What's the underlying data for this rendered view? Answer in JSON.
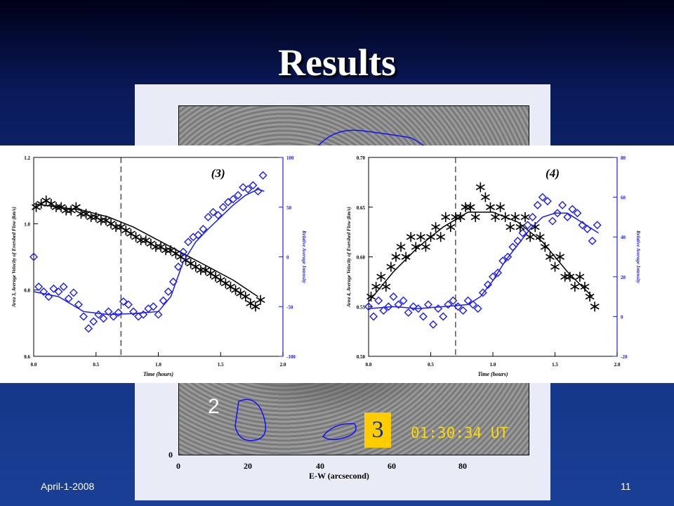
{
  "slide": {
    "title": "Results",
    "footer_date": "April-1-2008",
    "page_number": "11"
  },
  "image": {
    "region_label_2": "2",
    "region_label_3": "3",
    "timestamp": "01:30:34 UT",
    "x_ticks": [
      "0",
      "20",
      "40",
      "60",
      "80"
    ],
    "y_tick_zero": "0",
    "x_axis_label": "E-W (arcsecond)"
  },
  "chart_data": [
    {
      "type": "scatter",
      "title": "(3)",
      "xlabel": "Time (hours)",
      "ylabel_left": "Area 3, Average Velocity of Evershed Flow (km/s)",
      "ylabel_right": "Relative Average Intensity",
      "xlim": [
        0.0,
        2.0
      ],
      "ylim_left": [
        0.6,
        1.2
      ],
      "ylim_right": [
        -100,
        100
      ],
      "x_ticks": [
        "0.0",
        "0.5",
        "1.0",
        "1.5",
        "2.0"
      ],
      "y_ticks_left": [
        "0.6",
        "0.8",
        "1.0",
        "1.2"
      ],
      "y_ticks_right": [
        "-100",
        "-50",
        "0",
        "50",
        "100"
      ],
      "dashed_vline_x": 0.7,
      "series": [
        {
          "axis": "left",
          "color": "#000000",
          "marker": "asterisk",
          "x": [
            0.02,
            0.06,
            0.1,
            0.14,
            0.18,
            0.22,
            0.26,
            0.3,
            0.34,
            0.38,
            0.42,
            0.46,
            0.5,
            0.54,
            0.58,
            0.62,
            0.66,
            0.7,
            0.74,
            0.78,
            0.82,
            0.86,
            0.9,
            0.94,
            0.98,
            1.02,
            1.06,
            1.1,
            1.14,
            1.18,
            1.22,
            1.26,
            1.3,
            1.34,
            1.38,
            1.42,
            1.46,
            1.5,
            1.54,
            1.58,
            1.62,
            1.66,
            1.7,
            1.74,
            1.78,
            1.82
          ],
          "values": [
            1.05,
            1.06,
            1.07,
            1.06,
            1.05,
            1.05,
            1.04,
            1.04,
            1.05,
            1.03,
            1.03,
            1.02,
            1.02,
            1.01,
            1.01,
            1.0,
            0.99,
            0.99,
            0.98,
            0.97,
            0.96,
            0.95,
            0.95,
            0.94,
            0.93,
            0.93,
            0.92,
            0.92,
            0.91,
            0.9,
            0.89,
            0.88,
            0.87,
            0.86,
            0.86,
            0.85,
            0.84,
            0.83,
            0.82,
            0.81,
            0.8,
            0.79,
            0.78,
            0.76,
            0.75,
            0.77
          ]
        },
        {
          "axis": "left",
          "color": "#000000",
          "marker": "line",
          "x": [
            0.0,
            0.2,
            0.4,
            0.6,
            0.8,
            1.0,
            1.2,
            1.4,
            1.6,
            1.8
          ],
          "values": [
            1.06,
            1.05,
            1.04,
            1.02,
            0.99,
            0.95,
            0.91,
            0.87,
            0.83,
            0.78
          ]
        },
        {
          "axis": "right",
          "color": "#1a1aff",
          "marker": "diamond",
          "x": [
            0.0,
            0.04,
            0.08,
            0.12,
            0.16,
            0.2,
            0.24,
            0.28,
            0.32,
            0.36,
            0.4,
            0.44,
            0.48,
            0.52,
            0.56,
            0.6,
            0.64,
            0.68,
            0.72,
            0.76,
            0.8,
            0.84,
            0.88,
            0.92,
            0.96,
            1.0,
            1.04,
            1.08,
            1.12,
            1.16,
            1.2,
            1.24,
            1.28,
            1.32,
            1.36,
            1.4,
            1.44,
            1.48,
            1.52,
            1.56,
            1.6,
            1.64,
            1.68,
            1.72,
            1.76,
            1.8,
            1.84
          ],
          "values": [
            0,
            -30,
            -35,
            -40,
            -32,
            -35,
            -30,
            -42,
            -36,
            -48,
            -60,
            -72,
            -65,
            -58,
            -62,
            -55,
            -60,
            -56,
            -45,
            -48,
            -55,
            -60,
            -58,
            -52,
            -50,
            -58,
            -44,
            -35,
            -25,
            -10,
            5,
            15,
            20,
            22,
            28,
            40,
            45,
            42,
            50,
            55,
            58,
            62,
            70,
            68,
            72,
            66,
            82
          ]
        },
        {
          "axis": "right",
          "color": "#1a1aff",
          "marker": "line",
          "x": [
            0.0,
            0.2,
            0.4,
            0.6,
            0.8,
            1.0,
            1.1,
            1.2,
            1.3,
            1.4,
            1.5,
            1.6,
            1.7,
            1.8,
            1.85
          ],
          "values": [
            -35,
            -40,
            -55,
            -58,
            -57,
            -55,
            -40,
            -5,
            15,
            28,
            40,
            52,
            62,
            68,
            66
          ]
        }
      ]
    },
    {
      "type": "scatter",
      "title": "(4)",
      "xlabel": "Time (hours)",
      "ylabel_left": "Area 4, Average Velocity of Evershed Flow (km/s)",
      "ylabel_right": "Relative Average Intensity",
      "xlim": [
        0.0,
        2.0
      ],
      "ylim_left": [
        0.5,
        0.7
      ],
      "ylim_right": [
        -20,
        80
      ],
      "x_ticks": [
        "0.0",
        "0.5",
        "1.0",
        "1.5",
        "2.0"
      ],
      "y_ticks_left": [
        "0.50",
        "0.55",
        "0.60",
        "0.65",
        "0.70"
      ],
      "y_ticks_right": [
        "-20",
        "0",
        "20",
        "40",
        "60",
        "80"
      ],
      "dashed_vline_x": 0.7,
      "series": [
        {
          "axis": "left",
          "color": "#000000",
          "marker": "asterisk",
          "x": [
            0.02,
            0.06,
            0.1,
            0.14,
            0.18,
            0.22,
            0.26,
            0.3,
            0.34,
            0.38,
            0.42,
            0.46,
            0.5,
            0.54,
            0.58,
            0.62,
            0.66,
            0.7,
            0.74,
            0.78,
            0.82,
            0.86,
            0.9,
            0.94,
            0.98,
            1.02,
            1.06,
            1.1,
            1.14,
            1.18,
            1.22,
            1.26,
            1.3,
            1.34,
            1.38,
            1.42,
            1.46,
            1.5,
            1.54,
            1.58,
            1.62,
            1.66,
            1.7,
            1.74,
            1.78,
            1.82
          ],
          "values": [
            0.56,
            0.57,
            0.58,
            0.57,
            0.59,
            0.6,
            0.61,
            0.6,
            0.62,
            0.61,
            0.62,
            0.61,
            0.62,
            0.63,
            0.62,
            0.64,
            0.63,
            0.64,
            0.64,
            0.65,
            0.65,
            0.64,
            0.67,
            0.66,
            0.65,
            0.64,
            0.65,
            0.64,
            0.63,
            0.64,
            0.63,
            0.64,
            0.62,
            0.63,
            0.62,
            0.61,
            0.6,
            0.59,
            0.6,
            0.58,
            0.58,
            0.57,
            0.58,
            0.57,
            0.56,
            0.55
          ]
        },
        {
          "axis": "left",
          "color": "#000000",
          "marker": "line",
          "x": [
            0.0,
            0.2,
            0.4,
            0.6,
            0.8,
            1.0,
            1.2,
            1.4,
            1.6,
            1.8
          ],
          "values": [
            0.555,
            0.585,
            0.61,
            0.63,
            0.645,
            0.645,
            0.635,
            0.615,
            0.585,
            0.56
          ]
        },
        {
          "axis": "right",
          "color": "#1a1aff",
          "marker": "diamond",
          "x": [
            0.0,
            0.04,
            0.08,
            0.12,
            0.16,
            0.2,
            0.24,
            0.28,
            0.32,
            0.36,
            0.4,
            0.44,
            0.48,
            0.52,
            0.56,
            0.6,
            0.64,
            0.68,
            0.72,
            0.76,
            0.8,
            0.84,
            0.88,
            0.92,
            0.96,
            1.0,
            1.04,
            1.08,
            1.12,
            1.16,
            1.2,
            1.24,
            1.28,
            1.32,
            1.36,
            1.4,
            1.44,
            1.48,
            1.52,
            1.56,
            1.6,
            1.64,
            1.68,
            1.72,
            1.76,
            1.8,
            1.84
          ],
          "values": [
            5,
            0,
            8,
            3,
            5,
            10,
            6,
            8,
            2,
            5,
            4,
            0,
            6,
            -4,
            4,
            0,
            6,
            8,
            5,
            3,
            8,
            6,
            4,
            12,
            16,
            20,
            22,
            28,
            30,
            35,
            38,
            42,
            46,
            50,
            56,
            60,
            58,
            48,
            52,
            56,
            50,
            54,
            52,
            46,
            44,
            38,
            46
          ]
        },
        {
          "axis": "right",
          "color": "#1a1aff",
          "marker": "line",
          "x": [
            0.0,
            0.2,
            0.4,
            0.6,
            0.8,
            0.9,
            1.0,
            1.1,
            1.2,
            1.3,
            1.4,
            1.5,
            1.6,
            1.7,
            1.8,
            1.85
          ],
          "values": [
            4,
            5,
            4,
            5,
            6,
            10,
            18,
            28,
            36,
            44,
            50,
            52,
            52,
            48,
            44,
            42
          ]
        }
      ]
    }
  ]
}
